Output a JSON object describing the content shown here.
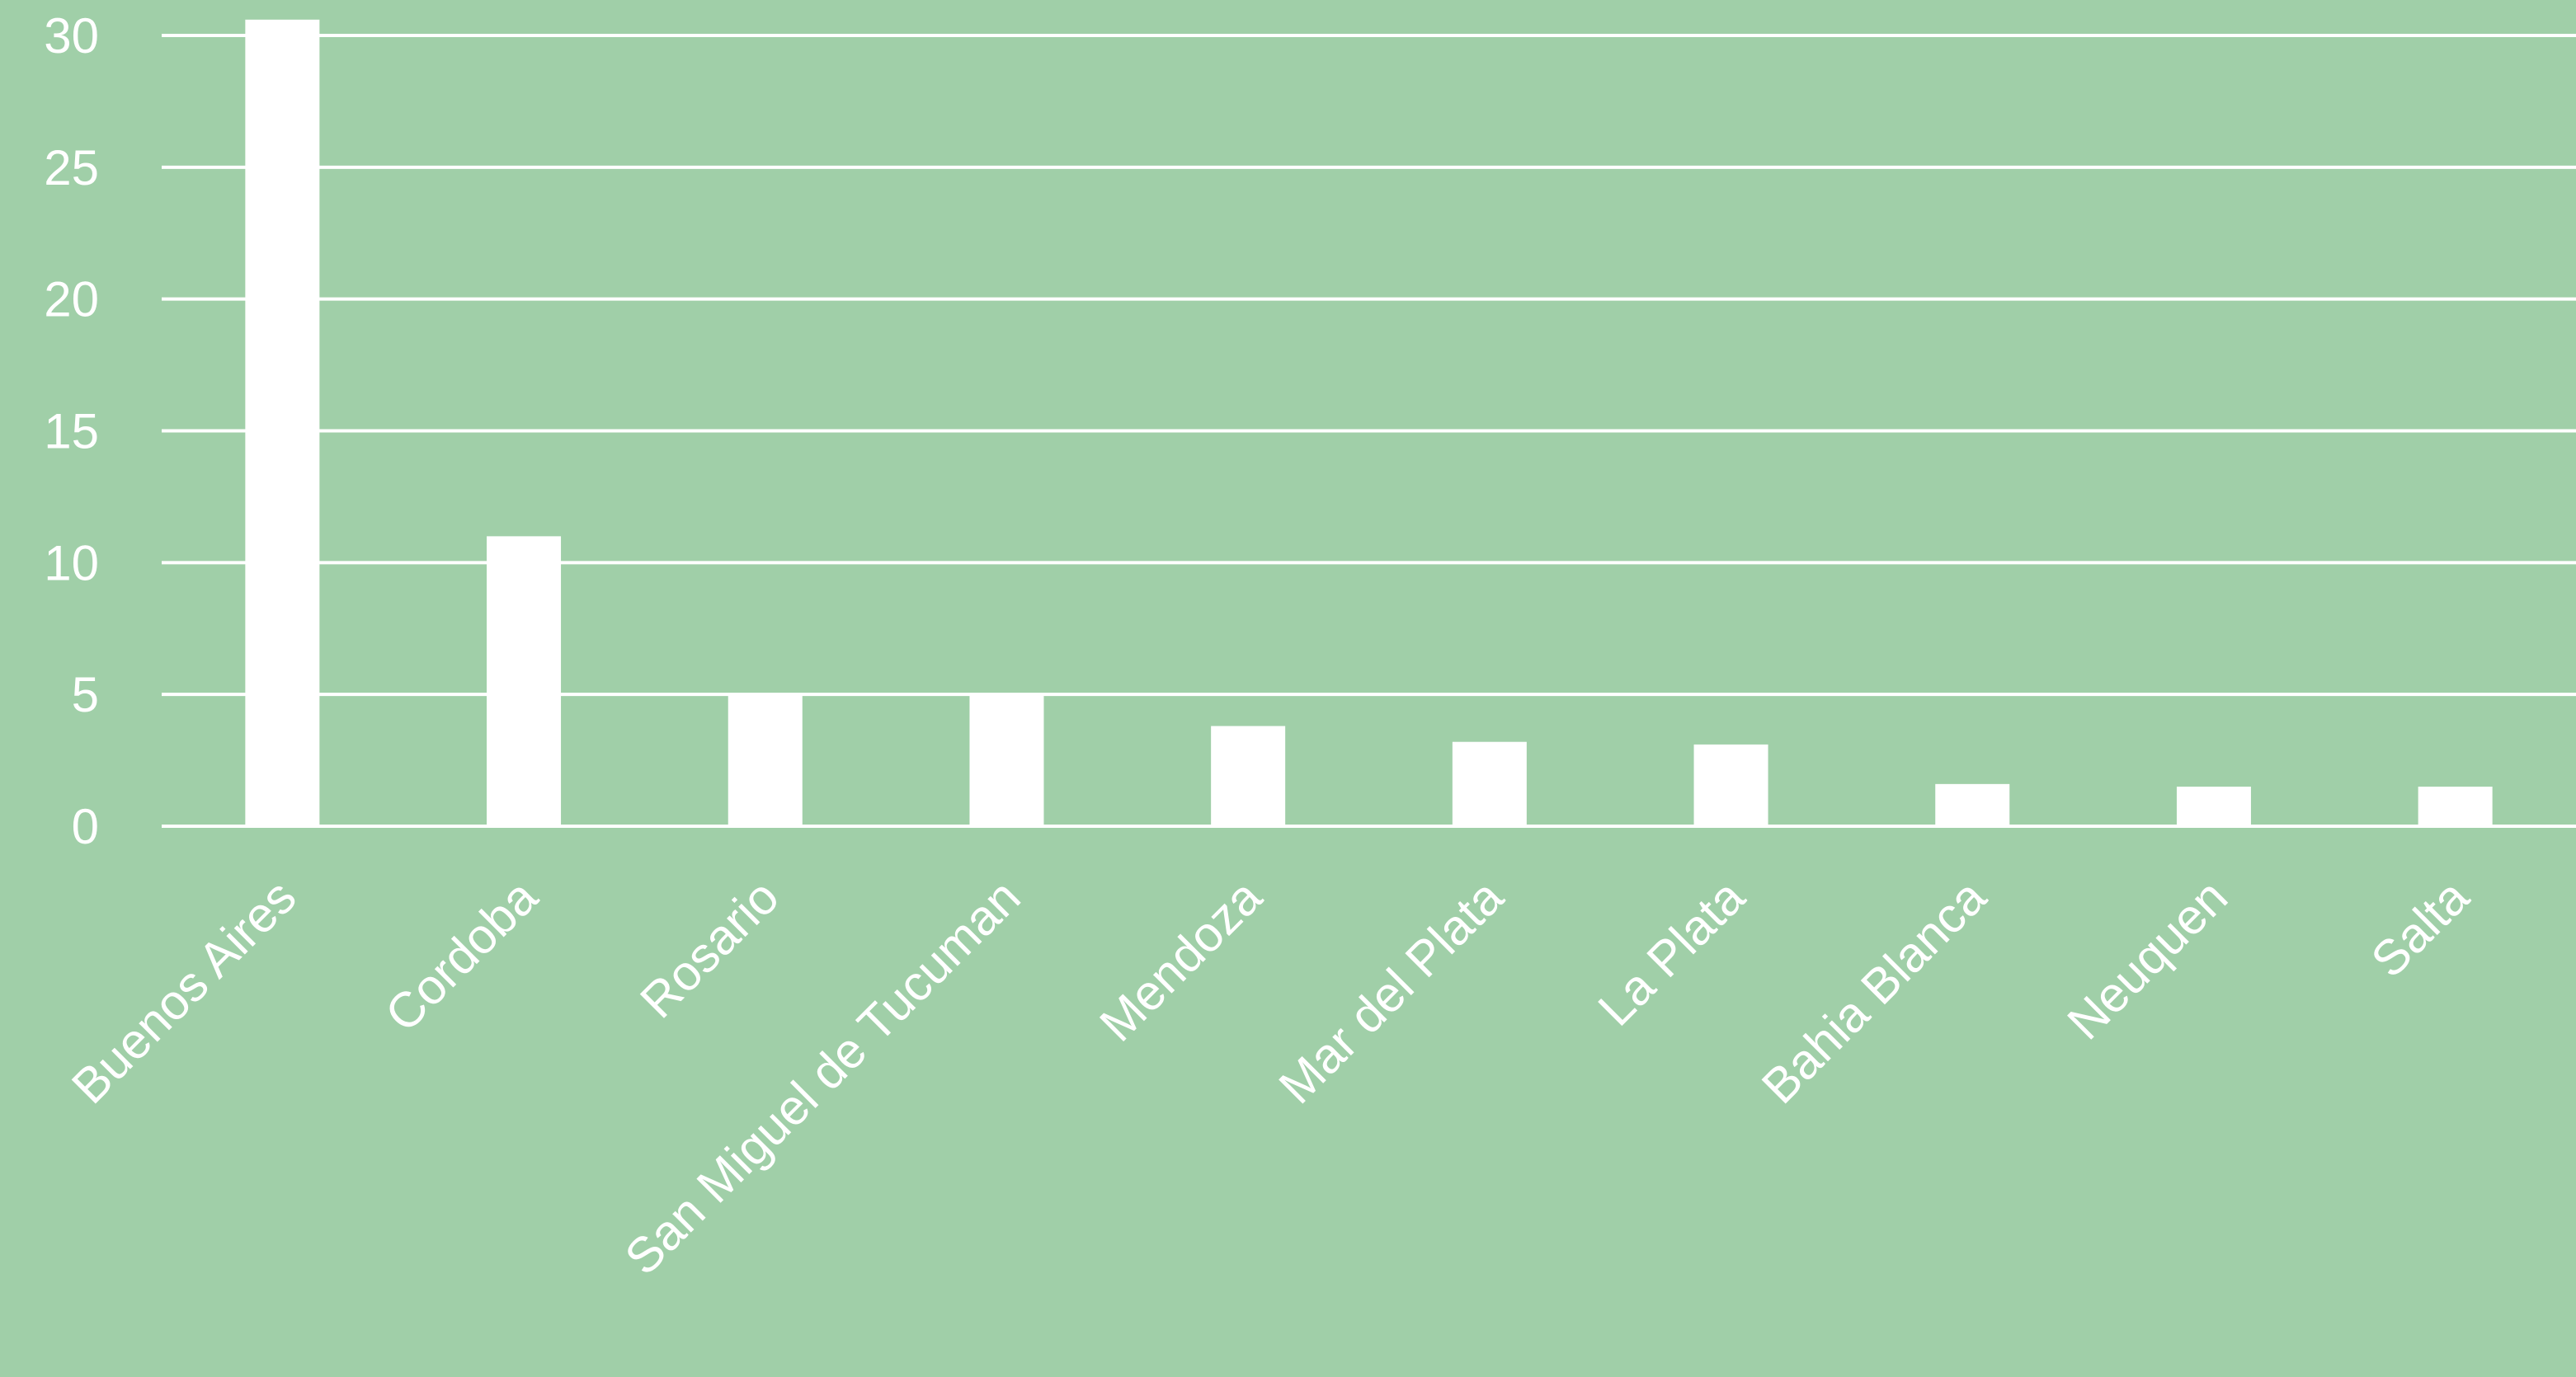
{
  "chart_data": {
    "type": "bar",
    "title": "",
    "xlabel": "",
    "ylabel": "",
    "categories": [
      "Buenos Aires",
      "Cordoba",
      "Rosario",
      "San Miguel de Tucuman",
      "Mendoza",
      "Mar del Plata",
      "La Plata",
      "Bahia Blanca",
      "Neuquen",
      "Salta"
    ],
    "values": [
      30.6,
      11.0,
      5.0,
      5.0,
      3.8,
      3.2,
      3.1,
      1.6,
      1.5,
      1.5
    ],
    "ylim": [
      0,
      30
    ],
    "yticks": [
      "0",
      "5",
      "10",
      "15",
      "20",
      "25",
      "30"
    ],
    "grid": true,
    "legend": "none",
    "colors": {
      "background": "#a0cfa8",
      "bar": "#ffffff",
      "grid": "#ffffff",
      "text": "#ffffff"
    }
  }
}
